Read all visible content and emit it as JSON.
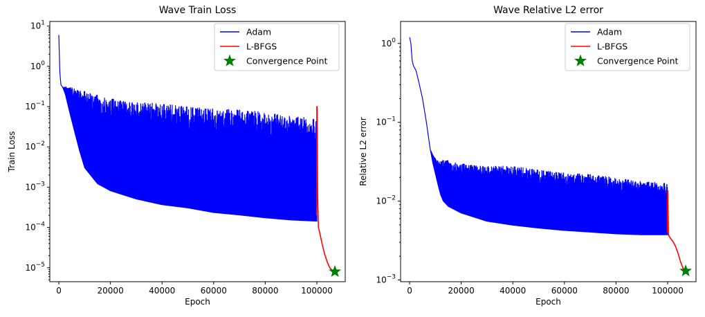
{
  "chart_data": [
    {
      "type": "line",
      "title": "Wave Train Loss",
      "xlabel": "Epoch",
      "ylabel": "Train Loss",
      "yscale": "log",
      "xlim": [
        -3500,
        111000
      ],
      "ylim": [
        4.5e-06,
        13
      ],
      "xticks": [
        0,
        20000,
        40000,
        60000,
        80000,
        100000
      ],
      "yticks": [
        {
          "value": 1e-05,
          "base": "10",
          "exp": "−5"
        },
        {
          "value": 0.0001,
          "base": "10",
          "exp": "−4"
        },
        {
          "value": 0.001,
          "base": "10",
          "exp": "−3"
        },
        {
          "value": 0.01,
          "base": "10",
          "exp": "−2"
        },
        {
          "value": 0.1,
          "base": "10",
          "exp": "−1"
        },
        {
          "value": 1,
          "base": "10",
          "exp": "0"
        },
        {
          "value": 10,
          "base": "10",
          "exp": "1"
        }
      ],
      "legend": {
        "position": "top-right",
        "entries": [
          {
            "label": "Adam",
            "kind": "line",
            "color": "#0000ff"
          },
          {
            "label": "L-BFGS",
            "kind": "line",
            "color": "#ff0000"
          },
          {
            "label": "Convergence Point",
            "kind": "star",
            "color": "#008000"
          }
        ]
      },
      "series": [
        {
          "name": "Adam",
          "color": "#0000ff",
          "style": "oscillating-band",
          "upper": {
            "x": [
              0,
              150,
              400,
              800,
              1500,
              2500,
              4000,
              6000,
              8000,
              10000,
              15000,
              20000,
              30000,
              40000,
              50000,
              60000,
              70000,
              80000,
              90000,
              100000
            ],
            "y": [
              6,
              2.5,
              0.7,
              0.35,
              0.3,
              0.32,
              0.3,
              0.3,
              0.28,
              0.25,
              0.2,
              0.16,
              0.13,
              0.12,
              0.1,
              0.09,
              0.085,
              0.075,
              0.06,
              0.05
            ]
          },
          "lower": {
            "x": [
              0,
              150,
              400,
              800,
              1500,
              2500,
              4000,
              6000,
              8000,
              10000,
              15000,
              20000,
              30000,
              40000,
              50000,
              60000,
              70000,
              80000,
              90000,
              100000
            ],
            "y": [
              6,
              2.5,
              0.7,
              0.35,
              0.3,
              0.2,
              0.08,
              0.025,
              0.008,
              0.003,
              0.0012,
              0.0008,
              0.0005,
              0.00036,
              0.0003,
              0.00023,
              0.0002,
              0.00017,
              0.00015,
              0.00014
            ]
          }
        },
        {
          "name": "L-BFGS",
          "color": "#ff0000",
          "x": [
            99900,
            100000,
            100100,
            100300,
            100600,
            101000,
            102000,
            103000,
            104000,
            105000,
            106000,
            107000
          ],
          "y": [
            0.0002,
            0.1,
            0.1,
            0.0006,
            0.0001,
            8e-05,
            4e-05,
            2.2e-05,
            1.4e-05,
            1e-05,
            8.5e-06,
            8e-06
          ]
        }
      ],
      "points": [
        {
          "name": "Convergence Point",
          "x": 107000,
          "y": 8e-06,
          "color": "#008000"
        }
      ]
    },
    {
      "type": "line",
      "title": "Wave Relative L2 error",
      "xlabel": "Epoch",
      "ylabel": "Relative L2 error",
      "yscale": "log",
      "xlim": [
        -3500,
        111000
      ],
      "ylim": [
        0.00095,
        1.9
      ],
      "xticks": [
        0,
        20000,
        40000,
        60000,
        80000,
        100000
      ],
      "yticks": [
        {
          "value": 0.001,
          "base": "10",
          "exp": "−3"
        },
        {
          "value": 0.01,
          "base": "10",
          "exp": "−2"
        },
        {
          "value": 0.1,
          "base": "10",
          "exp": "−1"
        },
        {
          "value": 1,
          "base": "10",
          "exp": "0"
        }
      ],
      "legend": {
        "position": "top-right",
        "entries": [
          {
            "label": "Adam",
            "kind": "line",
            "color": "#0000ff"
          },
          {
            "label": "L-BFGS",
            "kind": "line",
            "color": "#ff0000"
          },
          {
            "label": "Convergence Point",
            "kind": "star",
            "color": "#008000"
          }
        ]
      },
      "series": [
        {
          "name": "Adam",
          "color": "#0000ff",
          "style": "oscillating-band",
          "upper": {
            "x": [
              0,
              500,
              1000,
              1500,
              2500,
              3500,
              5000,
              6500,
              8000,
              9000,
              10000,
              11000,
              12000,
              13000,
              15000,
              20000,
              30000,
              40000,
              50000,
              60000,
              70000,
              80000,
              90000,
              100000
            ],
            "y": [
              1.2,
              1.0,
              0.6,
              0.52,
              0.45,
              0.33,
              0.2,
              0.1,
              0.045,
              0.04,
              0.035,
              0.033,
              0.032,
              0.035,
              0.033,
              0.03,
              0.028,
              0.028,
              0.025,
              0.023,
              0.022,
              0.02,
              0.018,
              0.017
            ]
          },
          "lower": {
            "x": [
              0,
              500,
              1000,
              1500,
              2500,
              3500,
              5000,
              6500,
              8000,
              9000,
              10000,
              11000,
              12000,
              13000,
              15000,
              20000,
              30000,
              40000,
              50000,
              60000,
              70000,
              80000,
              90000,
              100000
            ],
            "y": [
              1.2,
              1.0,
              0.6,
              0.52,
              0.45,
              0.33,
              0.2,
              0.1,
              0.045,
              0.03,
              0.022,
              0.016,
              0.012,
              0.01,
              0.0085,
              0.007,
              0.0055,
              0.0049,
              0.0045,
              0.0042,
              0.004,
              0.0038,
              0.0037,
              0.0037
            ]
          }
        },
        {
          "name": "L-BFGS",
          "color": "#ff0000",
          "x": [
            99900,
            100000,
            100100,
            100300,
            100600,
            101000,
            102000,
            103000,
            104000,
            105000,
            106000,
            107000
          ],
          "y": [
            0.004,
            0.0135,
            0.0135,
            0.0037,
            0.0036,
            0.0034,
            0.0031,
            0.0027,
            0.0022,
            0.0017,
            0.0014,
            0.0013
          ]
        }
      ],
      "points": [
        {
          "name": "Convergence Point",
          "x": 107000,
          "y": 0.0013,
          "color": "#008000"
        }
      ]
    }
  ]
}
